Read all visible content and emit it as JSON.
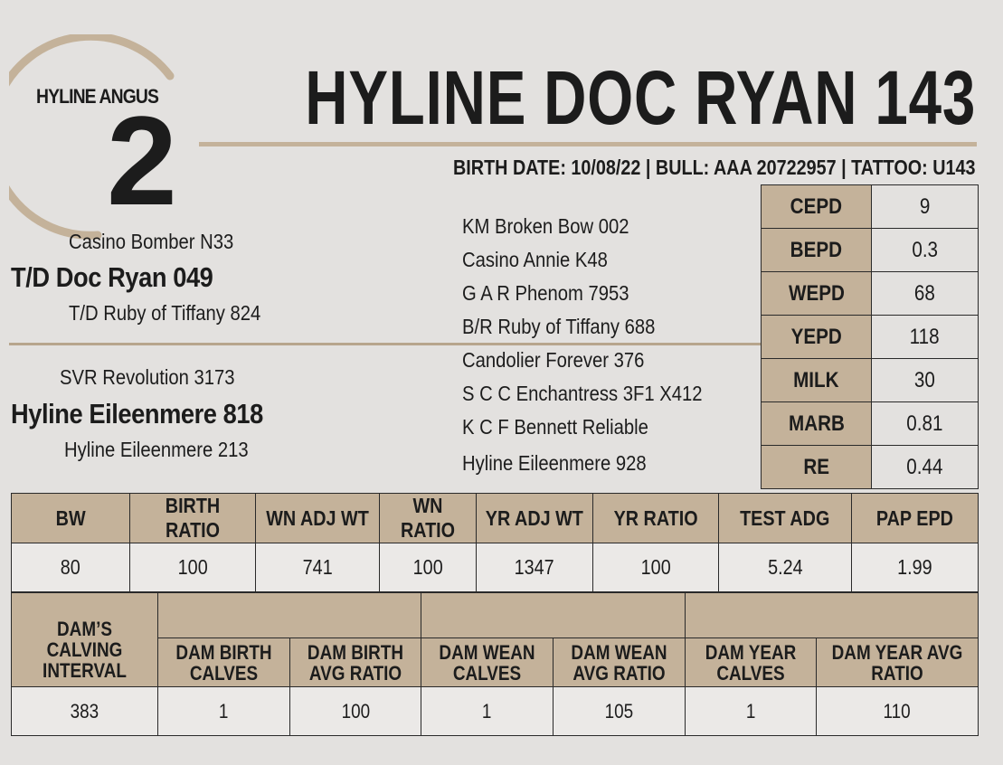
{
  "brand": "HYLINE ANGUS",
  "lot_number": "2",
  "title": "HYLINE DOC RYAN 143",
  "subline": "BIRTH DATE: 10/08/22 | BULL:  AAA 20722957 | TATTOO: U143",
  "pedigree": {
    "sire_sire": "Casino Bomber N33",
    "sire": "T/D Doc Ryan 049",
    "sire_dam": "T/D Ruby of Tiffany 824",
    "dam_sire": "SVR Revolution 3173",
    "dam": "Hyline Eileenmere 818",
    "dam_dam": "Hyline Eileenmere 213",
    "outer": [
      "KM Broken Bow 002",
      "Casino Annie K48",
      "G A R Phenom 7953",
      "B/R Ruby of Tiffany 688",
      "Candolier Forever 376",
      "S C C Enchantress 3F1 X412",
      "K C F Bennett Reliable",
      "Hyline Eileenmere 928"
    ]
  },
  "epds": [
    {
      "label": "CEPD",
      "value": "9"
    },
    {
      "label": "BEPD",
      "value": "0.3"
    },
    {
      "label": "WEPD",
      "value": "68"
    },
    {
      "label": "YEPD",
      "value": "118"
    },
    {
      "label": "MILK",
      "value": "30"
    },
    {
      "label": "MARB",
      "value": "0.81"
    },
    {
      "label": "RE",
      "value": "0.44"
    }
  ],
  "performance": {
    "headers": [
      "BW",
      "BIRTH RATIO",
      "WN ADJ WT",
      "WN RATIO",
      "YR ADJ WT",
      "YR RATIO",
      "TEST ADG",
      "PAP EPD"
    ],
    "values": [
      "80",
      "100",
      "741",
      "100",
      "1347",
      "100",
      "5.24",
      "1.99"
    ]
  },
  "dam_record": {
    "interval_header": "DAM’S CALVING INTERVAL",
    "headers": [
      "DAM BIRTH CALVES",
      "DAM BIRTH AVG RATIO",
      "DAM WEAN CALVES",
      "DAM WEAN AVG RATIO",
      "DAM YEAR CALVES",
      "DAM YEAR AVG RATIO"
    ],
    "values": [
      "383",
      "1",
      "100",
      "1",
      "105",
      "1",
      "110"
    ]
  }
}
